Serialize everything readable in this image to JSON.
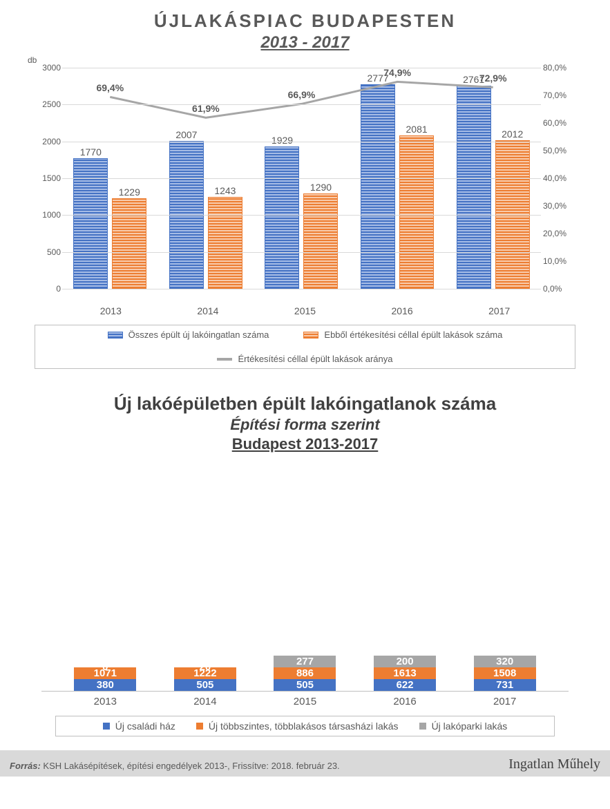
{
  "chart1": {
    "title": "ÚJLAKÁSPIAC BUDAPESTEN",
    "subtitle": "2013 - 2017",
    "unit": "db",
    "type": "grouped-bar+line",
    "categories": [
      "2013",
      "2014",
      "2015",
      "2016",
      "2017"
    ],
    "y_left": {
      "min": 0,
      "max": 3000,
      "step": 500
    },
    "y_right": {
      "min": 0,
      "max": 80,
      "step": 10,
      "suffix": ",0%"
    },
    "series": [
      {
        "name": "Összes épült új lakóingatlan száma",
        "type": "bar",
        "color": "#4472c4",
        "pattern": "h-stripe",
        "values": [
          1770,
          2007,
          1929,
          2777,
          2761
        ]
      },
      {
        "name": "Ebből értékesítési céllal épült lakások száma",
        "type": "bar",
        "color": "#ed7d31",
        "pattern": "h-stripe",
        "values": [
          1229,
          1243,
          1290,
          2081,
          2012
        ]
      },
      {
        "name": "Értékesítési céllal épült lakások aránya",
        "type": "line",
        "color": "#a6a6a6",
        "line_width": 3,
        "values_pct": [
          69.4,
          61.9,
          66.9,
          74.9,
          72.9
        ],
        "labels": [
          "69,4%",
          "61,9%",
          "66,9%",
          "74,9%",
          "72,9%"
        ]
      }
    ],
    "grid_color": "#d9d9d9",
    "background_color": "#ffffff",
    "label_fontsize": 14
  },
  "chart2": {
    "title": "Új lakóépületben épült lakóingatlanok száma",
    "subtitle1": "Építési forma szerint",
    "subtitle2": "Budapest 2013-2017",
    "type": "stacked-bar",
    "categories": [
      "2013",
      "2014",
      "2015",
      "2016",
      "2017"
    ],
    "y_max": 2600,
    "series": [
      {
        "name": "Új családi ház",
        "color": "#4472c4",
        "values": [
          380,
          505,
          505,
          622,
          731
        ]
      },
      {
        "name": "Új többszintes, többlakásos társasházi lakás",
        "color": "#ed7d31",
        "values": [
          1071,
          1222,
          886,
          1613,
          1508
        ]
      },
      {
        "name": "Új lakóparki lakás",
        "color": "#a6a6a6",
        "values": [
          0,
          20,
          277,
          200,
          320
        ]
      }
    ],
    "data_label_color": "#ffffff",
    "data_label_fontsize": 15,
    "background_color": "#ffffff"
  },
  "footer": {
    "source_label": "Forrás:",
    "source_text": " KSH Lakásépítések, építési engedélyek 2013-, Frissítve: 2018. február 23.",
    "logo_text": "Ingatlan Műhely"
  }
}
